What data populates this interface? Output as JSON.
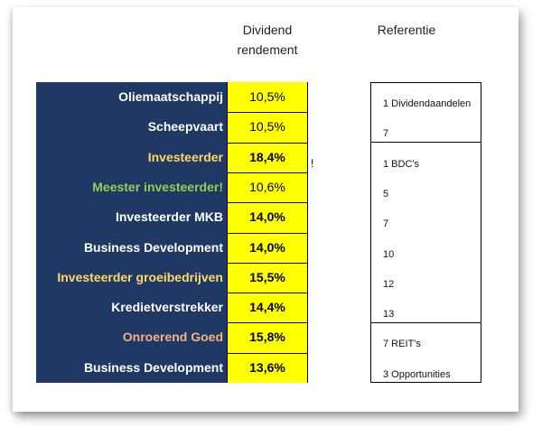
{
  "headers": {
    "dividend_line1": "Dividend",
    "dividend_line2": "rendement",
    "referentie": "Referentie"
  },
  "colors": {
    "name_bg": "#1f3864",
    "value_bg": "#ffff00",
    "white_text": "#ffffff",
    "yellow_text": "#ffd966",
    "green_text": "#92d050",
    "peach_text": "#f4b183"
  },
  "rows": [
    {
      "name": "Oliemaatschappij",
      "value": "10,5%",
      "bold": false,
      "color": "#ffffff"
    },
    {
      "name": "Scheepvaart",
      "value": "10,5%",
      "bold": false,
      "color": "#ffffff"
    },
    {
      "name": "Investeerder",
      "value": "18,4%",
      "bold": true,
      "color": "#ffd966"
    },
    {
      "name": "Meester investeerder!",
      "value": "10,6%",
      "bold": false,
      "color": "#92d050"
    },
    {
      "name": "Investeerder MKB",
      "value": "14,0%",
      "bold": true,
      "color": "#ffffff"
    },
    {
      "name": "Business Development",
      "value": "14,0%",
      "bold": true,
      "color": "#ffffff"
    },
    {
      "name": "Investeerder groeibedrijven",
      "value": "15,5%",
      "bold": true,
      "color": "#ffd966"
    },
    {
      "name": "Kredietverstrekker",
      "value": "14,4%",
      "bold": true,
      "color": "#ffffff"
    },
    {
      "name": "Onroerend Goed",
      "value": "15,8%",
      "bold": true,
      "color": "#f4b183"
    },
    {
      "name": "Business Development",
      "value": "13,6%",
      "bold": true,
      "color": "#ffffff"
    }
  ],
  "note_mark": "!",
  "references": [
    "1 Dividendaandelen",
    "7",
    "1 BDC's",
    "5",
    "7",
    "10",
    "12",
    "13",
    "7 REIT's",
    "3 Opportunities"
  ]
}
